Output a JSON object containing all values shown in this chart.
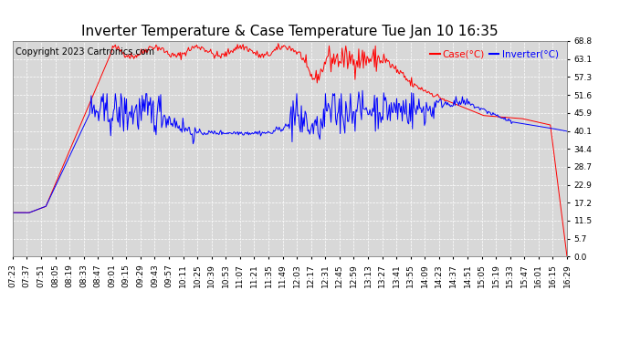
{
  "title": "Inverter Temperature & Case Temperature Tue Jan 10 16:35",
  "copyright": "Copyright 2023 Cartronics.com",
  "legend_case": "Case(°C)",
  "legend_inverter": "Inverter(°C)",
  "y_ticks": [
    0.0,
    5.7,
    11.5,
    17.2,
    22.9,
    28.7,
    34.4,
    40.1,
    45.9,
    51.6,
    57.3,
    63.1,
    68.8
  ],
  "ylim": [
    0.0,
    68.8
  ],
  "background_color": "#ffffff",
  "plot_bg_color": "#d8d8d8",
  "grid_color": "#ffffff",
  "case_color": "red",
  "inverter_color": "blue",
  "title_fontsize": 11,
  "copyright_fontsize": 7,
  "tick_fontsize": 6.5,
  "x_tick_labels": [
    "07:23",
    "07:37",
    "07:51",
    "08:05",
    "08:19",
    "08:33",
    "08:47",
    "09:01",
    "09:15",
    "09:29",
    "09:43",
    "09:57",
    "10:11",
    "10:25",
    "10:39",
    "10:53",
    "11:07",
    "11:21",
    "11:35",
    "11:49",
    "12:03",
    "12:17",
    "12:31",
    "12:45",
    "12:59",
    "13:13",
    "13:27",
    "13:41",
    "13:55",
    "14:09",
    "14:23",
    "14:37",
    "14:51",
    "15:05",
    "15:19",
    "15:33",
    "15:47",
    "16:01",
    "16:15",
    "16:29"
  ]
}
